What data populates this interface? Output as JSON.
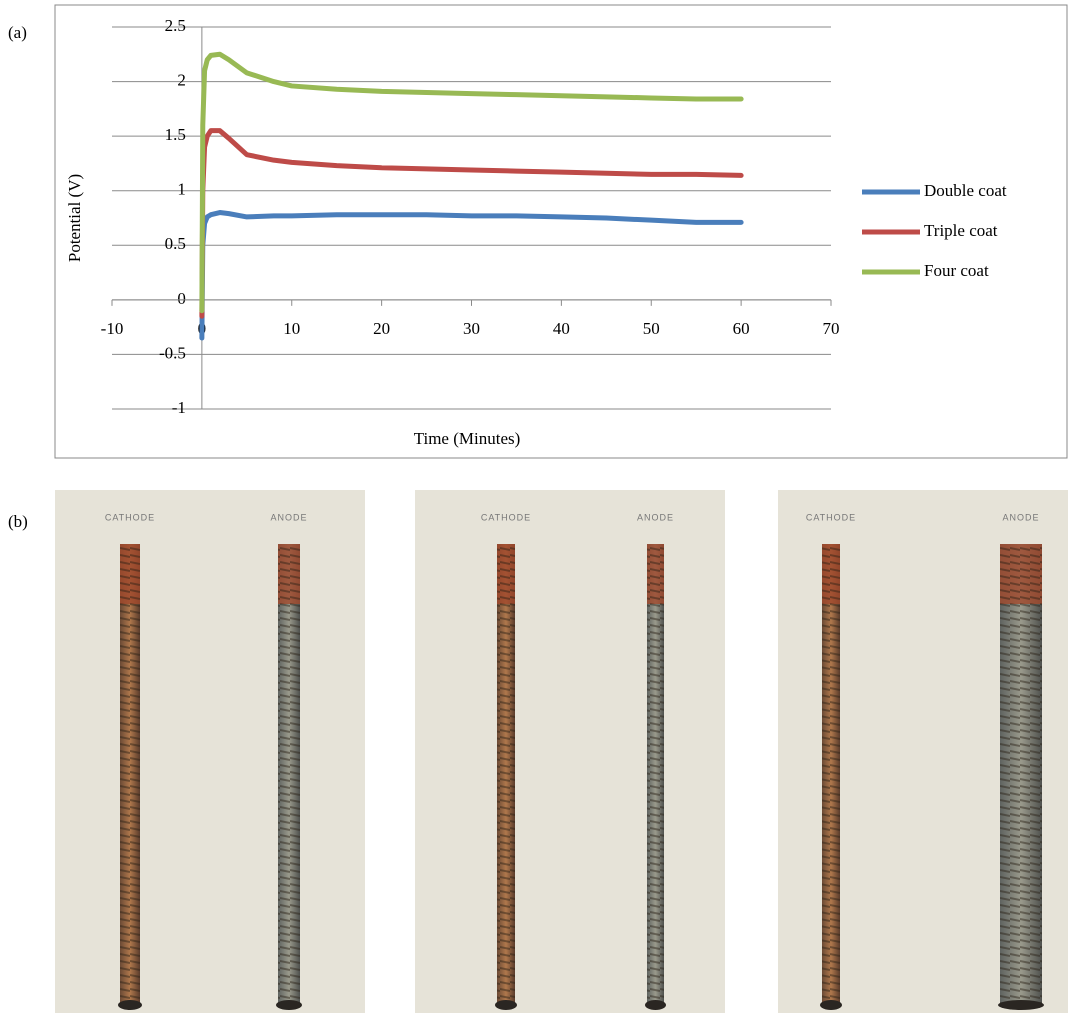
{
  "panel_labels": [
    "(a)",
    "(b)"
  ],
  "chart_data": {
    "type": "line",
    "x_label": "Time (Minutes)",
    "y_label": "Potential (V)",
    "x": [
      0,
      0.1,
      0.3,
      0.6,
      1,
      2,
      3,
      5,
      8,
      10,
      15,
      20,
      25,
      30,
      35,
      40,
      45,
      50,
      55,
      60
    ],
    "series": [
      {
        "name": "Double coat",
        "color": "#4a7ebb",
        "values": [
          -0.35,
          0.5,
          0.7,
          0.76,
          0.78,
          0.8,
          0.79,
          0.76,
          0.77,
          0.77,
          0.78,
          0.78,
          0.78,
          0.77,
          0.77,
          0.76,
          0.75,
          0.73,
          0.71,
          0.71
        ]
      },
      {
        "name": "Triple coat",
        "color": "#be4b48",
        "values": [
          -0.15,
          1.0,
          1.4,
          1.5,
          1.55,
          1.55,
          1.48,
          1.33,
          1.28,
          1.26,
          1.23,
          1.21,
          1.2,
          1.19,
          1.18,
          1.17,
          1.16,
          1.15,
          1.15,
          1.14
        ]
      },
      {
        "name": "Four coat",
        "color": "#98b954",
        "values": [
          -0.1,
          1.6,
          2.1,
          2.2,
          2.24,
          2.25,
          2.2,
          2.08,
          2.0,
          1.96,
          1.93,
          1.91,
          1.9,
          1.89,
          1.88,
          1.87,
          1.86,
          1.85,
          1.84,
          1.84
        ]
      }
    ],
    "xlim": [
      -10,
      70
    ],
    "xticks": [
      -10,
      0,
      10,
      20,
      30,
      40,
      50,
      60,
      70
    ],
    "ylim": [
      -1,
      2.5
    ],
    "yticks": [
      -1,
      -0.5,
      0,
      0.5,
      1,
      1.5,
      2,
      2.5
    ],
    "grid": true,
    "legend": "right"
  },
  "photos": [
    {
      "labels": [
        "CATHODE",
        "ANODE"
      ]
    },
    {
      "labels": [
        "CATHODE",
        "ANODE"
      ]
    },
    {
      "labels": [
        "CATHODE",
        "ANODE"
      ]
    }
  ]
}
